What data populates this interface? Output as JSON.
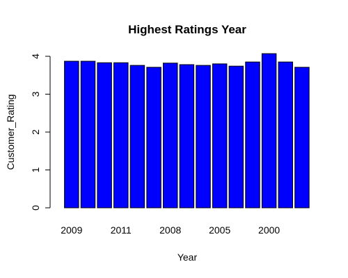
{
  "chart_data": {
    "type": "bar",
    "title": "Highest Ratings Year",
    "x_label": "Year",
    "y_label": "Customer_Rating",
    "categories": [
      "2009",
      null,
      null,
      "2011",
      null,
      null,
      "2008",
      null,
      null,
      "2005",
      null,
      null,
      "2000",
      null,
      null
    ],
    "values": [
      3.87,
      3.87,
      3.83,
      3.83,
      3.76,
      3.71,
      3.82,
      3.78,
      3.76,
      3.8,
      3.74,
      3.85,
      4.07,
      3.85,
      3.71
    ],
    "color": "#0000ff",
    "ylim": [
      0,
      4
    ],
    "yticks": [
      0,
      1,
      2,
      3,
      4
    ]
  }
}
